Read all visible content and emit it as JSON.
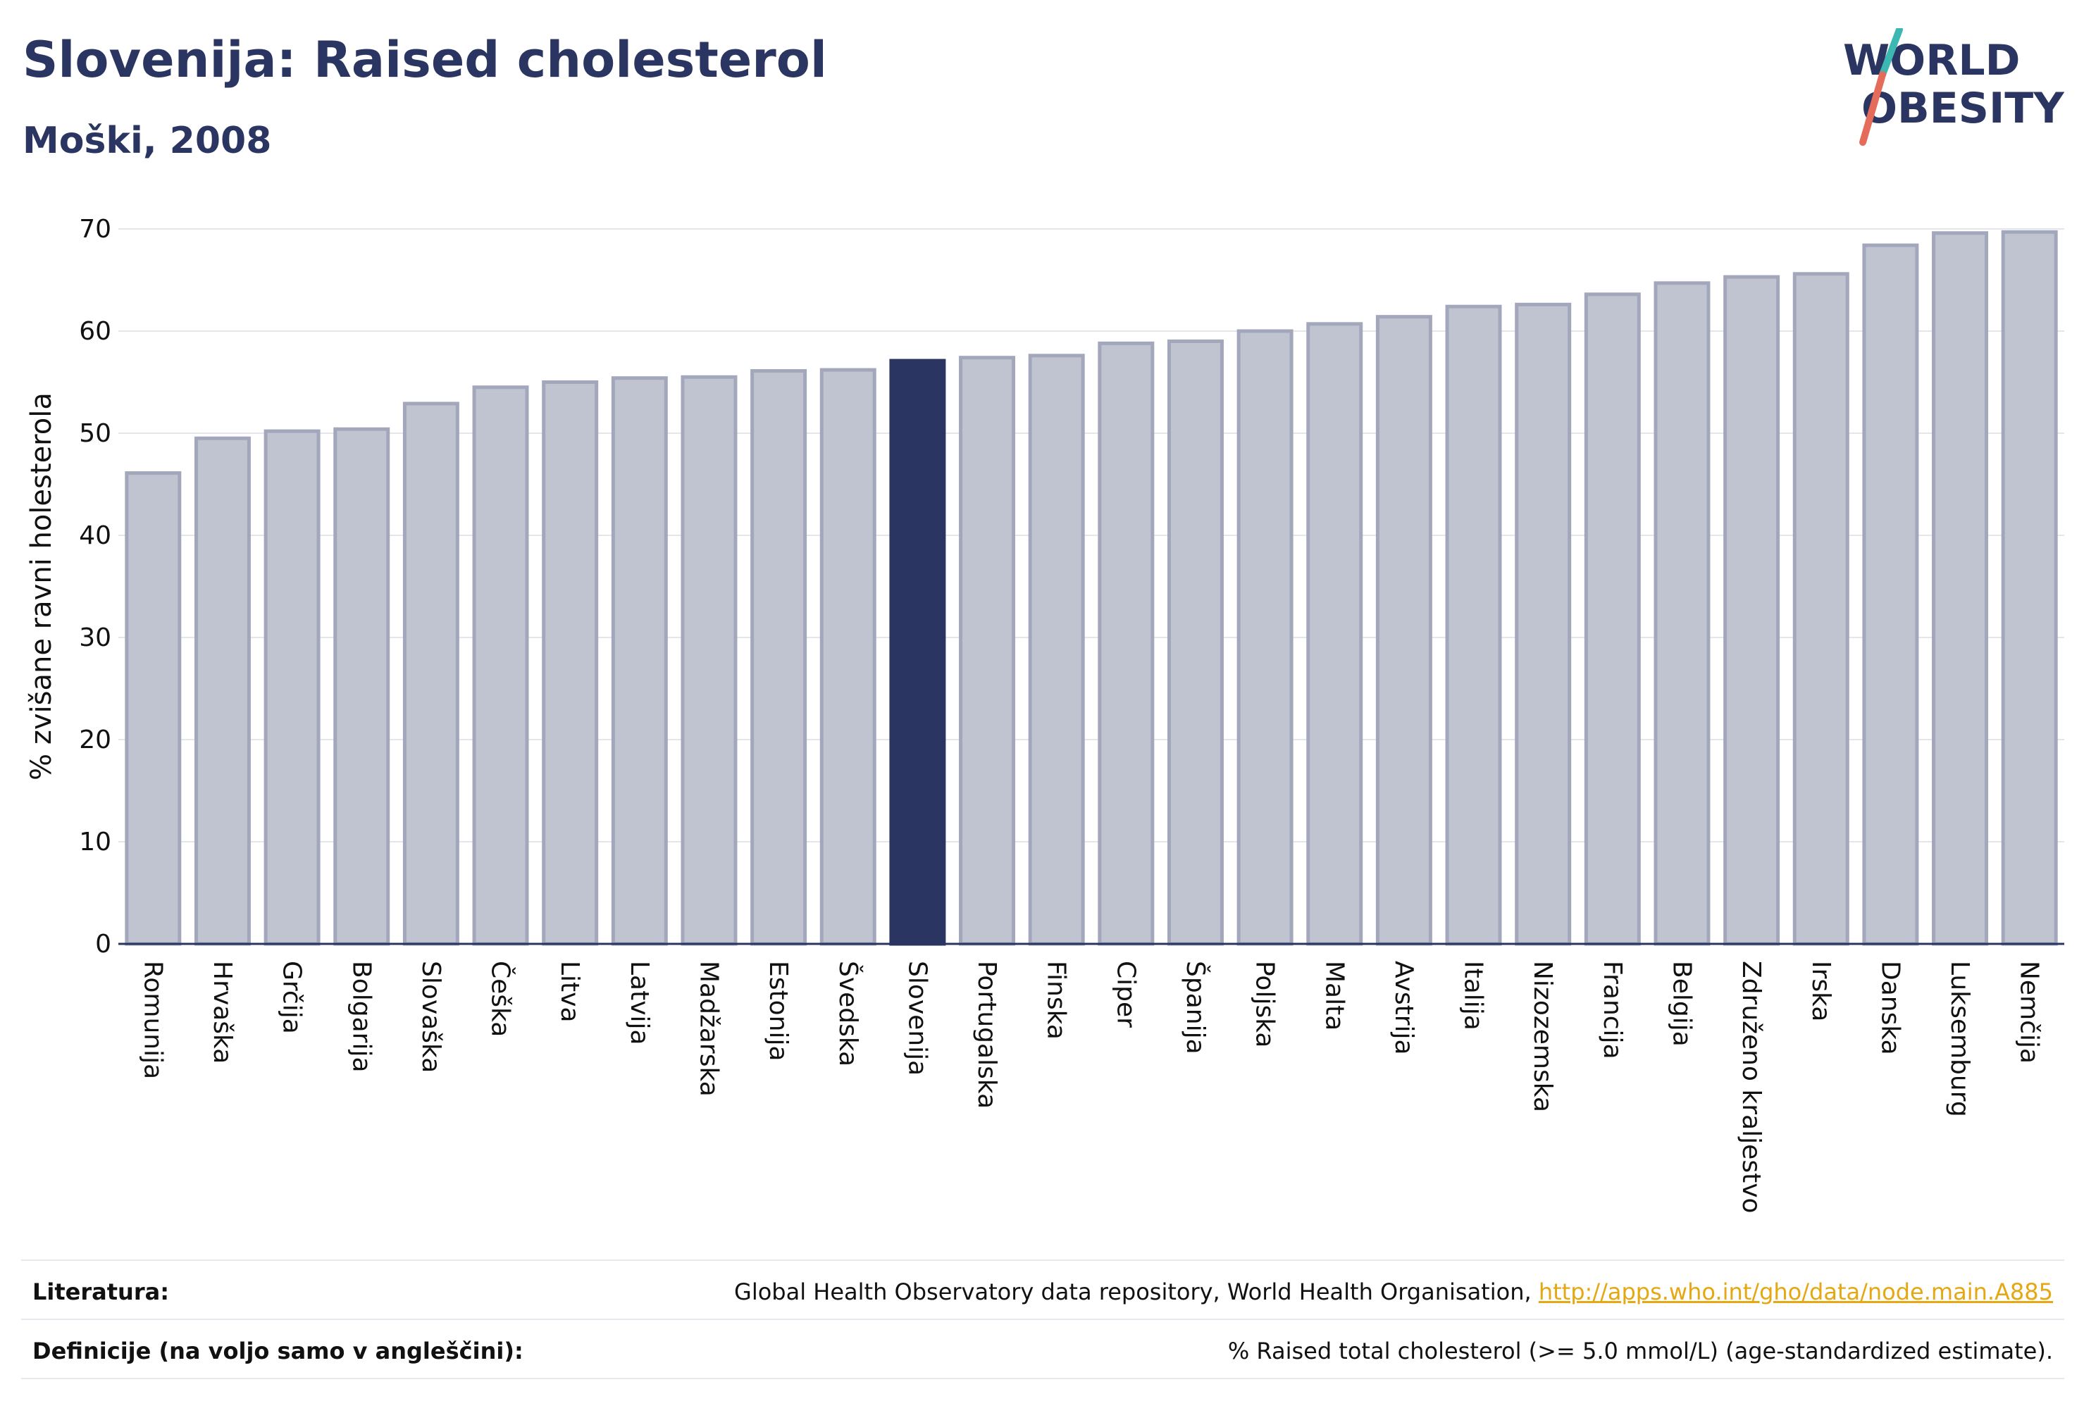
{
  "title": "Slovenija: Raised cholesterol",
  "subtitle": "Moški, 2008",
  "logo": {
    "line1": "WORLD",
    "line2": "OBESITY"
  },
  "colors": {
    "bar": "#c0c3d0",
    "bar_border": "#a3a7bb",
    "highlight": "#2a3561",
    "grid": "#e4e6ec",
    "link": "#e5a712"
  },
  "chart_data": {
    "type": "bar",
    "title": "Slovenija: Raised cholesterol",
    "subtitle": "Moški, 2008",
    "xlabel": "",
    "ylabel": "% zvišane ravni holesterola",
    "ylim": [
      0,
      70
    ],
    "yticks": [
      0,
      10,
      20,
      30,
      40,
      50,
      60,
      70
    ],
    "grid": true,
    "highlight": "Slovenija",
    "categories": [
      "Romunija",
      "Hrvaška",
      "Grčija",
      "Bolgarija",
      "Slovaška",
      "Češka",
      "Litva",
      "Latvija",
      "Madžarska",
      "Estonija",
      "Švedska",
      "Slovenija",
      "Portugalska",
      "Finska",
      "Ciper",
      "Španija",
      "Poljska",
      "Malta",
      "Avstrija",
      "Italija",
      "Nizozemska",
      "Francija",
      "Belgija",
      "Združeno kraljestvo",
      "Irska",
      "Danska",
      "Luksemburg",
      "Nemčija"
    ],
    "values": [
      46.1,
      49.5,
      50.2,
      50.4,
      52.9,
      54.5,
      55.0,
      55.4,
      55.5,
      56.1,
      56.2,
      57.1,
      57.4,
      57.6,
      58.8,
      59.0,
      60.0,
      60.7,
      61.4,
      62.4,
      62.6,
      63.6,
      64.7,
      65.3,
      65.6,
      68.4,
      69.6,
      69.7
    ]
  },
  "footer": {
    "ref_label": "Literatura:",
    "ref_text": "Global Health Observatory data repository, World Health Organisation, ",
    "ref_link": "http://apps.who.int/gho/data/node.main.A885",
    "def_label": "Definicije (na voljo samo v angleščini):",
    "def_text": "% Raised total cholesterol (>= 5.0 mmol/L) (age-standardized estimate)."
  }
}
